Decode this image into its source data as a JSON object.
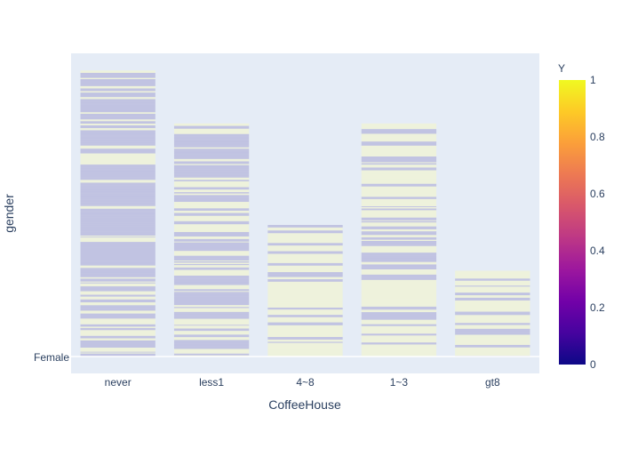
{
  "chart_data": {
    "type": "bar",
    "title": "",
    "xlabel": "CoffeeHouse",
    "ylabel": "gender",
    "categories": [
      "never",
      "less1",
      "4~8",
      "1~3",
      "gt8"
    ],
    "y_tick_labels": [
      "Female"
    ],
    "values": [
      1,
      0.815,
      0.46,
      0.815,
      0.3
    ],
    "ylim": [
      0,
      1.06
    ],
    "bar_style": "stacked segments colored by Y (0 = blue-purple, 1 = pale yellow) at 0.2 opacity",
    "color_scale": {
      "title": "Y",
      "range": [
        0,
        1
      ],
      "ticks": [
        "0",
        "0.2",
        "0.4",
        "0.6",
        "0.8",
        "1"
      ],
      "colors": [
        "#0d0887",
        "#46039f",
        "#7201a8",
        "#9c179e",
        "#bd3786",
        "#d8576b",
        "#ed7953",
        "#fb9f3a",
        "#fdca26",
        "#f0f921"
      ]
    },
    "stripe_mix_yellow_share": [
      0.25,
      0.45,
      0.8,
      0.7,
      0.75
    ]
  }
}
